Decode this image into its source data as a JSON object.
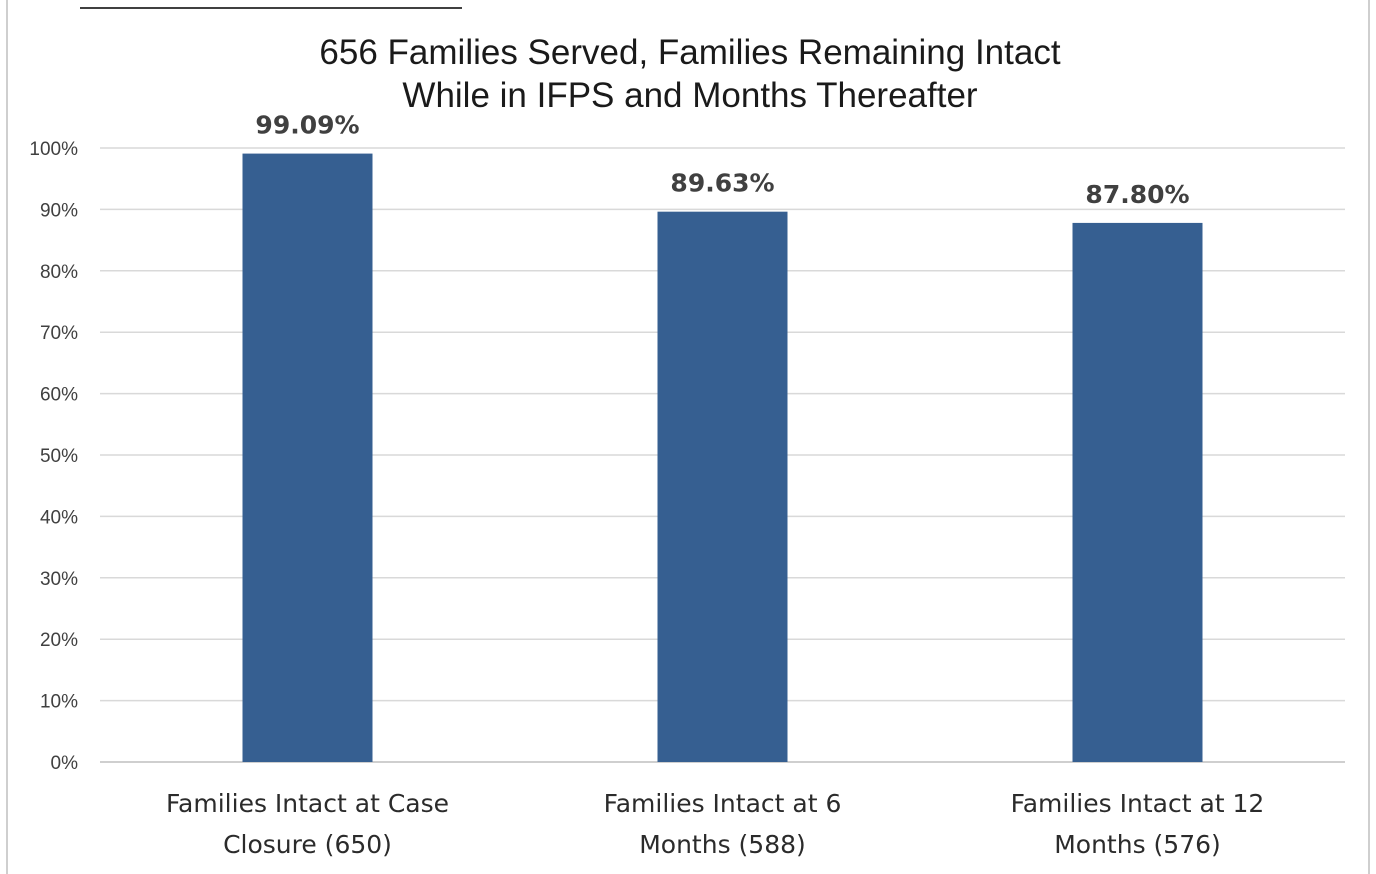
{
  "chart_data": {
    "type": "bar",
    "title_lines": [
      "656 Families Served, Families Remaining Intact",
      "While in IFPS and Months Thereafter"
    ],
    "categories": [
      [
        "Families Intact at Case",
        "Closure (650)"
      ],
      [
        "Families Intact at 6",
        "Months (588)"
      ],
      [
        "Families Intact at 12",
        "Months (576)"
      ]
    ],
    "values": [
      99.09,
      89.63,
      87.8
    ],
    "value_labels": [
      "99.09%",
      "89.63%",
      "87.80%"
    ],
    "yticks": [
      "0%",
      "10%",
      "20%",
      "30%",
      "40%",
      "50%",
      "60%",
      "70%",
      "80%",
      "90%",
      "100%"
    ],
    "ylim": [
      0,
      100
    ],
    "grid": true,
    "legend": "none",
    "colors": {
      "bar": "#365f91",
      "grid": "#d9d9d9",
      "frame": "#bfbfbf"
    }
  }
}
